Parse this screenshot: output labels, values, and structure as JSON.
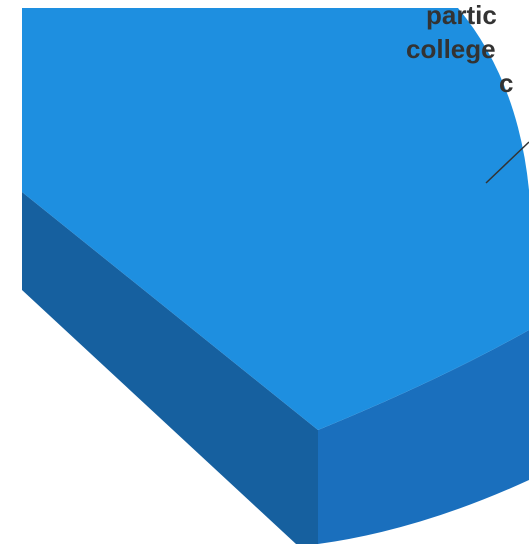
{
  "chart_data": {
    "type": "pie",
    "style": "3d",
    "slice_labels": [
      {
        "lines": [
          "partic",
          "college",
          "c"
        ]
      }
    ],
    "colors": {
      "top_face": "#1e8fe0",
      "side_face": "#1a6fbd",
      "side_face_dark": "#16609f",
      "leader_line": "#333333",
      "label_text": "#333333"
    }
  }
}
